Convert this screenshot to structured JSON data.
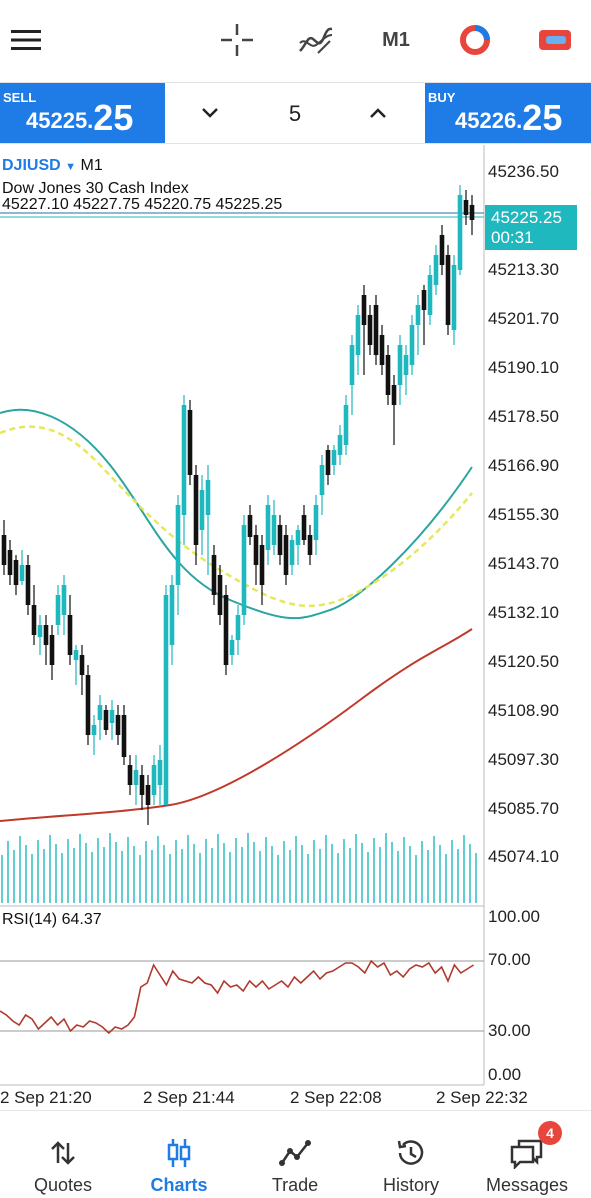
{
  "toolbar": {
    "menu_icon": "menu-icon",
    "crosshair_icon": "crosshair-icon",
    "indicators_icon": "indicators-icon",
    "timeframe": "M1",
    "objects_icon": "objects-icon",
    "trade_icon": "trade-icon"
  },
  "trade": {
    "sell_label": "SELL",
    "sell_price_main": "45225.",
    "sell_price_big": "25",
    "buy_label": "BUY",
    "buy_price_main": "45226.",
    "buy_price_big": "25",
    "lot": "5"
  },
  "chart": {
    "symbol": "DJIUSD",
    "timeframe": "M1",
    "description": "Dow Jones 30 Cash Index",
    "ohlc": "45227.10 45227.75 45220.75 45225.25",
    "current_price": "45225.25",
    "countdown": "00:31",
    "price_axis": [
      "45236.50",
      "45213.30",
      "45201.70",
      "45190.10",
      "45178.50",
      "45166.90",
      "45155.30",
      "45143.70",
      "45132.10",
      "45120.50",
      "45108.90",
      "45097.30",
      "45085.70",
      "45074.10"
    ],
    "rsi_label": "RSI(14) 64.37",
    "rsi_axis": [
      "100.00",
      "70.00",
      "30.00",
      "0.00"
    ],
    "time_axis": [
      "2 Sep 21:20",
      "2 Sep 21:44",
      "2 Sep 22:08",
      "2 Sep 22:32"
    ],
    "colors": {
      "bull": "#1fb8bf",
      "bear": "#111111",
      "ma_fast": "#2aa5a0",
      "ma_dashed": "#e6e85a",
      "ma_slow": "#c0392b",
      "rsi": "#b03a2e",
      "accent": "#1f7be6"
    }
  },
  "nav": {
    "items": [
      {
        "label": "Quotes",
        "icon": "quotes-icon"
      },
      {
        "label": "Charts",
        "icon": "charts-icon"
      },
      {
        "label": "Trade",
        "icon": "trade-chart-icon"
      },
      {
        "label": "History",
        "icon": "history-icon"
      },
      {
        "label": "Messages",
        "icon": "messages-icon"
      }
    ],
    "messages_badge": "4"
  }
}
